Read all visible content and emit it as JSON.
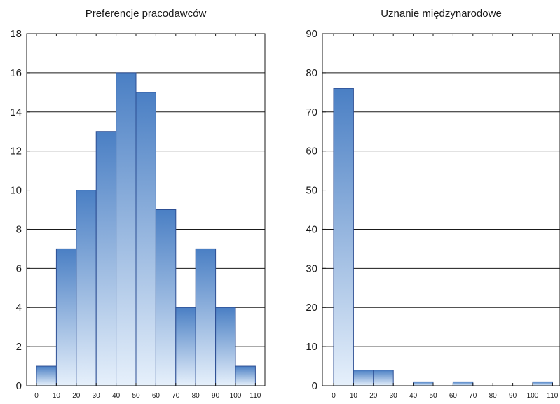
{
  "chart_data": [
    {
      "type": "bar",
      "title": "Preferencje pracodawców",
      "xlabel": "",
      "ylabel": "",
      "bin_edges": [
        0,
        10,
        20,
        30,
        40,
        50,
        60,
        70,
        80,
        90,
        100,
        110
      ],
      "values": [
        1,
        7,
        10,
        13,
        16,
        15,
        9,
        4,
        7,
        4,
        1
      ],
      "xticks": [
        "0",
        "10",
        "20",
        "30",
        "40",
        "50",
        "60",
        "70",
        "80",
        "90",
        "100",
        "110"
      ],
      "yticks": [
        "0",
        "2",
        "4",
        "6",
        "8",
        "10",
        "12",
        "14",
        "16",
        "18"
      ],
      "ylim": [
        0,
        18
      ],
      "grid": "horizontal"
    },
    {
      "type": "bar",
      "title": "Uznanie międzynarodowe",
      "xlabel": "",
      "ylabel": "",
      "bin_edges": [
        0,
        10,
        20,
        30,
        40,
        50,
        60,
        70,
        80,
        90,
        100,
        110
      ],
      "values": [
        76,
        4,
        4,
        0,
        1,
        0,
        1,
        0,
        0,
        0,
        1
      ],
      "xticks": [
        "0",
        "10",
        "20",
        "30",
        "40",
        "50",
        "60",
        "70",
        "80",
        "90",
        "100",
        "110"
      ],
      "yticks": [
        "0",
        "10",
        "20",
        "30",
        "40",
        "50",
        "60",
        "70",
        "80",
        "90"
      ],
      "ylim": [
        0,
        90
      ],
      "grid": "horizontal"
    }
  ],
  "colors": {
    "bar_top": "#4a7fc4",
    "bar_bottom": "#e6f0fb",
    "bar_stroke": "#2d4f94",
    "axis": "#1a1a1a",
    "grid": "#1a1a1a"
  }
}
